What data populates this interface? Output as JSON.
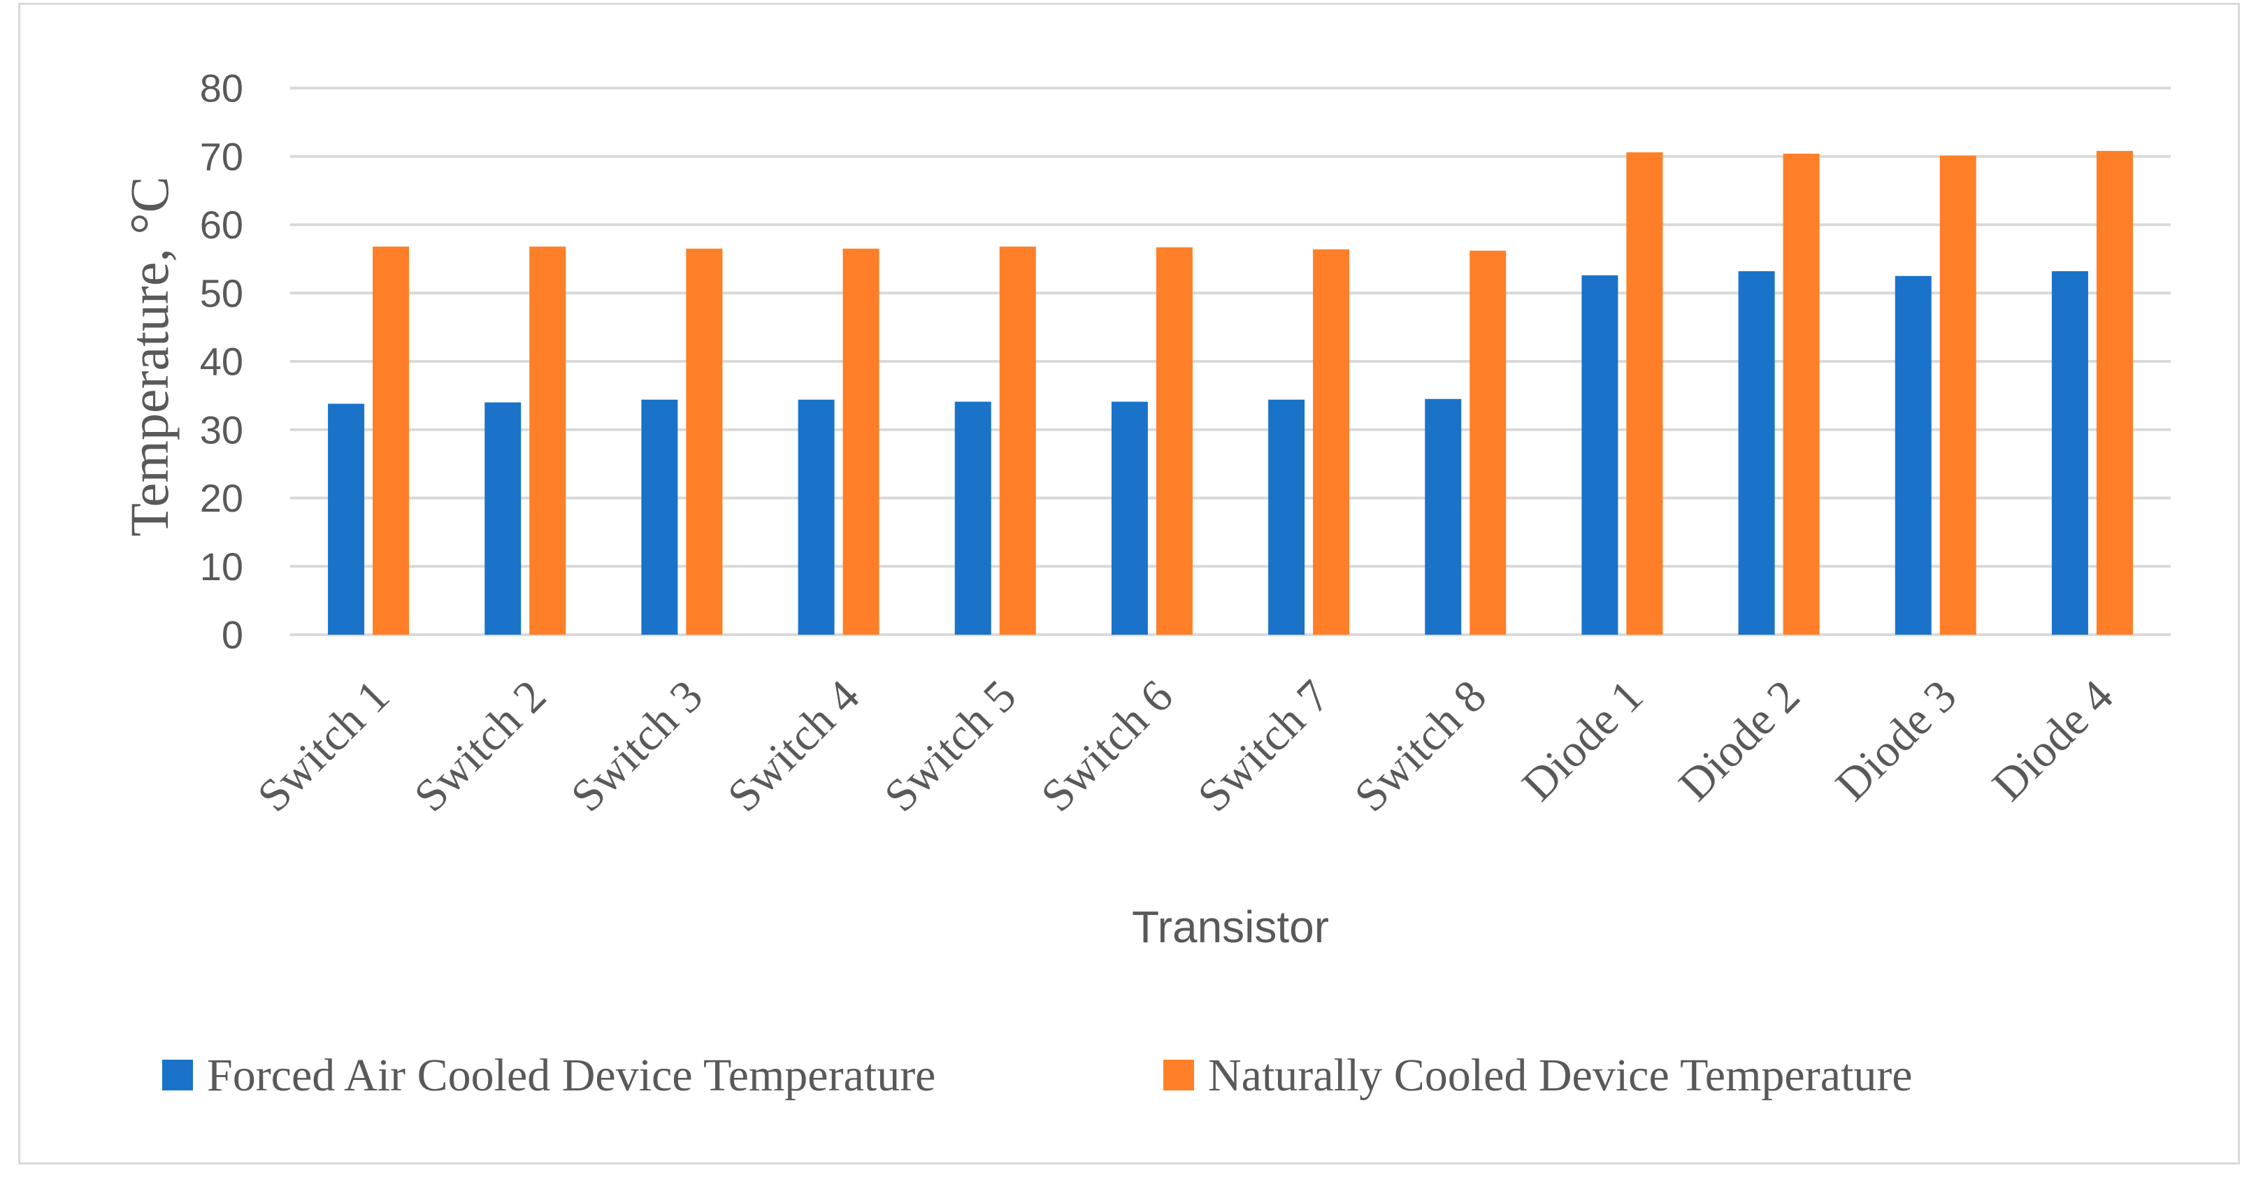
{
  "chart_data": {
    "type": "bar",
    "title": "",
    "xlabel": "Transistor",
    "ylabel": "Temperature,  °C",
    "ylim": [
      0,
      80
    ],
    "yticks": [
      0,
      10,
      20,
      30,
      40,
      50,
      60,
      70,
      80
    ],
    "grid": true,
    "legend_position": "bottom",
    "categories": [
      "Switch 1",
      "Switch 2",
      "Switch 3",
      "Switch 4",
      "Switch 5",
      "Switch 6",
      "Switch 7",
      "Switch 8",
      "Diode 1",
      "Diode 2",
      "Diode 3",
      "Diode 4"
    ],
    "series": [
      {
        "name": "Forced Air Cooled Device Temperature",
        "color": "#1a73c9",
        "values": [
          33.8,
          34.0,
          34.4,
          34.4,
          34.1,
          34.1,
          34.4,
          34.5,
          52.6,
          53.2,
          52.5,
          53.2
        ]
      },
      {
        "name": "Naturally Cooled Device Temperature",
        "color": "#fe7f27",
        "values": [
          56.8,
          56.8,
          56.5,
          56.5,
          56.8,
          56.7,
          56.4,
          56.2,
          70.6,
          70.4,
          70.1,
          70.8
        ]
      }
    ]
  },
  "colors": {
    "grid": "#d9d9d9",
    "text": "#595959",
    "border": "#d9d9d9"
  }
}
